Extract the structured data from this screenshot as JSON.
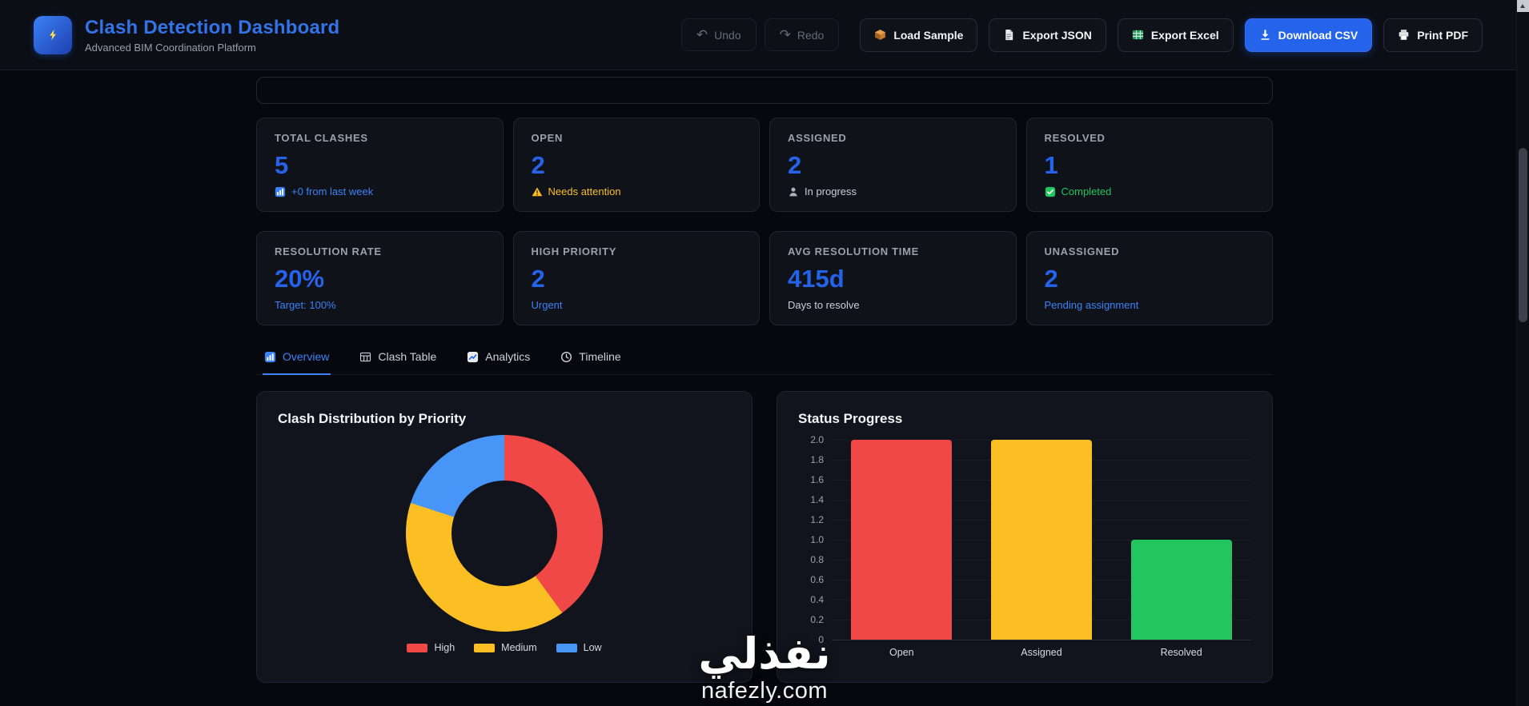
{
  "header": {
    "logo_icon": "lightning-bolt-icon",
    "title": "Clash Detection Dashboard",
    "subtitle": "Advanced BIM Coordination Platform",
    "history_buttons": [
      {
        "id": "undo",
        "label": "Undo",
        "icon": "undo-icon",
        "enabled": false
      },
      {
        "id": "redo",
        "label": "Redo",
        "icon": "redo-icon",
        "enabled": false
      }
    ],
    "action_buttons": [
      {
        "id": "load-sample",
        "label": "Load Sample",
        "icon": "package-icon",
        "style": "default"
      },
      {
        "id": "export-json",
        "label": "Export JSON",
        "icon": "document-icon",
        "style": "default"
      },
      {
        "id": "export-excel",
        "label": "Export Excel",
        "icon": "spreadsheet-icon",
        "style": "default"
      },
      {
        "id": "download-csv",
        "label": "Download CSV",
        "icon": "download-icon",
        "style": "primary"
      },
      {
        "id": "print-pdf",
        "label": "Print PDF",
        "icon": "printer-icon",
        "style": "default"
      }
    ]
  },
  "stats": [
    {
      "id": "total-clashes",
      "label": "TOTAL CLASHES",
      "value": "5",
      "icon": "bar-chart-icon",
      "sub": "+0 from last week",
      "sub_color": "#3b82f6"
    },
    {
      "id": "open",
      "label": "OPEN",
      "value": "2",
      "icon": "warning-icon",
      "sub": "Needs attention",
      "sub_color": "#fbbf24"
    },
    {
      "id": "assigned",
      "label": "ASSIGNED",
      "value": "2",
      "icon": "person-icon",
      "sub": "In progress",
      "sub_color": "#c9cfd8"
    },
    {
      "id": "resolved",
      "label": "RESOLVED",
      "value": "1",
      "icon": "check-icon",
      "sub": "Completed",
      "sub_color": "#22c55e"
    },
    {
      "id": "resolution-rate",
      "label": "RESOLUTION RATE",
      "value": "20%",
      "icon": null,
      "sub": "Target: 100%",
      "sub_color": "#3b82f6"
    },
    {
      "id": "high-priority",
      "label": "HIGH PRIORITY",
      "value": "2",
      "icon": null,
      "sub": "Urgent",
      "sub_color": "#3b82f6"
    },
    {
      "id": "avg-resolution-time",
      "label": "AVG RESOLUTION TIME",
      "value": "415d",
      "icon": null,
      "sub": "Days to resolve",
      "sub_color": "#c9cfd8"
    },
    {
      "id": "unassigned",
      "label": "UNASSIGNED",
      "value": "2",
      "icon": null,
      "sub": "Pending assignment",
      "sub_color": "#3b82f6"
    }
  ],
  "tabs": [
    {
      "id": "overview",
      "label": "Overview",
      "icon": "bar-chart-icon",
      "active": true
    },
    {
      "id": "clash-table",
      "label": "Clash Table",
      "icon": "table-icon",
      "active": false
    },
    {
      "id": "analytics",
      "label": "Analytics",
      "icon": "analytics-icon",
      "active": false
    },
    {
      "id": "timeline",
      "label": "Timeline",
      "icon": "clock-icon",
      "active": false
    }
  ],
  "chart_data": [
    {
      "type": "pie",
      "donut": true,
      "title": "Clash Distribution by Priority",
      "labels": [
        "High",
        "Medium",
        "Low"
      ],
      "values": [
        2,
        2,
        1
      ],
      "colors": [
        "#f04747",
        "#fbbf24",
        "#4695f7"
      ],
      "legend_position": "bottom"
    },
    {
      "type": "bar",
      "title": "Status Progress",
      "categories": [
        "Open",
        "Assigned",
        "Resolved"
      ],
      "values": [
        2,
        2,
        1
      ],
      "colors": [
        "#f04747",
        "#fbbf24",
        "#22c55e"
      ],
      "ylim": [
        0,
        2
      ],
      "yticks": [
        "2.0",
        "1.8",
        "1.6",
        "1.4",
        "1.2",
        "1.0",
        "0.8",
        "0.6",
        "0.4",
        "0.2",
        "0"
      ],
      "legend_position": "none"
    }
  ],
  "watermark": {
    "arabic": "نفذلي",
    "domain": "nafezly.com"
  },
  "theme": {
    "accent": "#2563eb",
    "value_color": "#2563eb",
    "background": "#07080d",
    "card_background": "#0f1219",
    "panel_background": "#11141c",
    "title_color": "#3273e8"
  }
}
